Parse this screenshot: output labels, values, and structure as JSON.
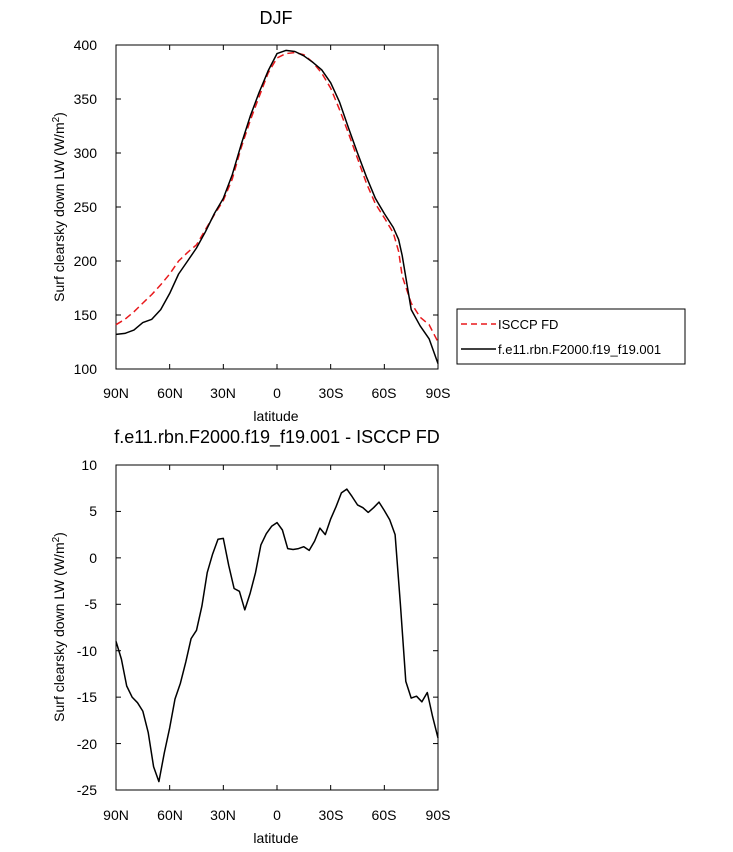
{
  "chart_data": [
    {
      "type": "line",
      "title": "DJF",
      "xlabel": "latitude",
      "ylabel_main": "Surf clearsky down LW (W/m",
      "ylabel_sup": "2",
      "ylabel_close": ")",
      "xlim": [
        -90,
        90
      ],
      "ylim": [
        100,
        400
      ],
      "xticks": [
        -90,
        -60,
        -30,
        0,
        30,
        60,
        90
      ],
      "xticklabels": [
        "90N",
        "60N",
        "30N",
        "0",
        "30S",
        "60S",
        "90S"
      ],
      "yticks": [
        100,
        150,
        200,
        250,
        300,
        350,
        400
      ],
      "yticklabels": [
        "100",
        "150",
        "200",
        "250",
        "300",
        "350",
        "400"
      ],
      "legend": {
        "placement": "right",
        "entries": [
          {
            "label": "ISCCP FD",
            "color": "#e8191c",
            "style": "dashed"
          },
          {
            "label": "f.e11.rbn.F2000.f19_f19.001",
            "color": "#000000",
            "style": "solid"
          }
        ]
      },
      "series": [
        {
          "name": "ISCCP FD",
          "color": "#e8191c",
          "dash": true,
          "x": [
            -90,
            -85,
            -80,
            -75,
            -70,
            -65,
            -60,
            -55,
            -50,
            -45,
            -40,
            -35,
            -30,
            -25,
            -20,
            -15,
            -10,
            -5,
            0,
            5,
            10,
            15,
            20,
            25,
            30,
            35,
            40,
            45,
            50,
            55,
            60,
            65,
            68,
            70,
            75,
            80,
            85,
            90
          ],
          "y": [
            141,
            146,
            153,
            161,
            169,
            178,
            188,
            200,
            208,
            215,
            229,
            243,
            256,
            276,
            305,
            330,
            352,
            374,
            388,
            392,
            393,
            391,
            384,
            374,
            360,
            340,
            318,
            295,
            272,
            253,
            240,
            226,
            209,
            186,
            161,
            148,
            141,
            125
          ]
        },
        {
          "name": "f.e11.rbn.F2000.f19_f19.001",
          "color": "#000000",
          "dash": false,
          "x": [
            -90,
            -85,
            -80,
            -75,
            -70,
            -65,
            -60,
            -55,
            -50,
            -45,
            -40,
            -35,
            -30,
            -25,
            -20,
            -15,
            -10,
            -5,
            0,
            5,
            10,
            15,
            20,
            25,
            30,
            35,
            40,
            45,
            50,
            55,
            60,
            65,
            68,
            70,
            75,
            80,
            85,
            90
          ],
          "y": [
            132,
            133,
            136,
            143,
            146,
            155,
            170,
            188,
            200,
            212,
            227,
            244,
            258,
            280,
            308,
            334,
            356,
            376,
            392,
            395,
            394,
            390,
            384,
            377,
            365,
            347,
            323,
            300,
            278,
            258,
            244,
            231,
            220,
            205,
            155,
            140,
            128,
            105
          ]
        }
      ]
    },
    {
      "type": "line",
      "title": "f.e11.rbn.F2000.f19_f19.001 - ISCCP FD",
      "xlabel": "latitude",
      "ylabel_main": "Surf clearsky down LW (W/m",
      "ylabel_sup": "2",
      "ylabel_close": ")",
      "xlim": [
        -90,
        90
      ],
      "ylim": [
        -25,
        10
      ],
      "xticks": [
        -90,
        -60,
        -30,
        0,
        30,
        60,
        90
      ],
      "xticklabels": [
        "90N",
        "60N",
        "30N",
        "0",
        "30S",
        "60S",
        "90S"
      ],
      "yticks": [
        -25,
        -20,
        -15,
        -10,
        -5,
        0,
        5,
        10
      ],
      "yticklabels": [
        "-25",
        "-20",
        "-15",
        "-10",
        "-5",
        "0",
        "5",
        "10"
      ],
      "series": [
        {
          "name": "f.e11.rbn.F2000.f19_f19.001 - ISCCP FD",
          "color": "#000000",
          "dash": false,
          "x": [
            -90,
            -87,
            -84,
            -81,
            -78,
            -75,
            -72,
            -69,
            -66,
            -63,
            -60,
            -57,
            -54,
            -51,
            -48,
            -45,
            -42,
            -39,
            -36,
            -33,
            -30,
            -27,
            -24,
            -21,
            -18,
            -15,
            -12,
            -9,
            -6,
            -3,
            0,
            3,
            6,
            9,
            12,
            15,
            18,
            21,
            24,
            27,
            30,
            33,
            36,
            39,
            42,
            45,
            48,
            51,
            54,
            57,
            60,
            63,
            66,
            69,
            72,
            75,
            78,
            81,
            84,
            87,
            90
          ],
          "y": [
            -9.0,
            -10.9,
            -13.8,
            -15.0,
            -15.6,
            -16.5,
            -18.8,
            -22.5,
            -24.1,
            -21.0,
            -18.3,
            -15.2,
            -13.5,
            -11.2,
            -8.7,
            -7.8,
            -5.2,
            -1.6,
            0.4,
            2.0,
            2.1,
            -0.8,
            -3.3,
            -3.6,
            -5.6,
            -3.8,
            -1.6,
            1.4,
            2.6,
            3.4,
            3.8,
            3.0,
            1.0,
            0.9,
            1.0,
            1.2,
            0.8,
            1.8,
            3.2,
            2.5,
            4.2,
            5.5,
            7.0,
            7.4,
            6.6,
            5.7,
            5.4,
            4.9,
            5.4,
            6.0,
            5.1,
            4.1,
            2.5,
            -5.0,
            -13.3,
            -15.1,
            -14.9,
            -15.5,
            -14.5,
            -17.1,
            -19.4
          ]
        }
      ]
    }
  ]
}
